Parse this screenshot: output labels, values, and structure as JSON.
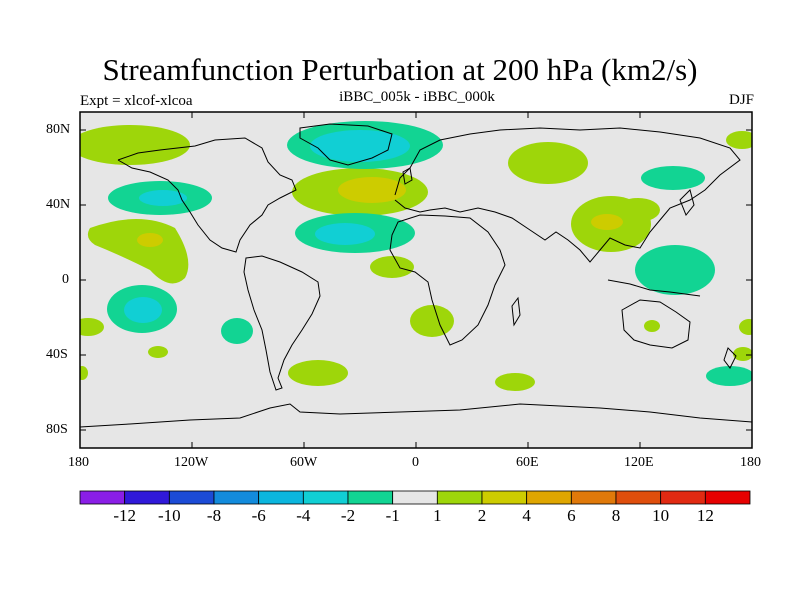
{
  "title": "Streamfunction Perturbation at 200 hPa (km2/s)",
  "left_label": "Expt = xlcof-xlcoa",
  "center_label": "iBBC_005k - iBBC_000k",
  "right_label": "DJF",
  "axes": {
    "lat_ticks": [
      "80N",
      "40N",
      "0",
      "40S",
      "80S"
    ],
    "lon_ticks": [
      "180",
      "120W",
      "60W",
      "0",
      "60E",
      "120E",
      "180"
    ]
  },
  "colorbar": {
    "labels": [
      "-12",
      "-10",
      "-8",
      "-6",
      "-4",
      "-2",
      "-1",
      "1",
      "2",
      "4",
      "6",
      "8",
      "10",
      "12"
    ],
    "colors": [
      "#8a1ee6",
      "#3019d9",
      "#1c4bd6",
      "#138bdc",
      "#0bb6de",
      "#11cfd4",
      "#12d493",
      "#e6e6e6",
      "#9ed60a",
      "#cdcc00",
      "#dfa600",
      "#e0790a",
      "#df4e0c",
      "#e12a12",
      "#e60000"
    ]
  },
  "colors": {
    "land_background": "#e6e6e6",
    "positive_1": "#9ed60a",
    "positive_2": "#cdcc00",
    "negative_1": "#12d493",
    "negative_2": "#11cfd4"
  }
}
